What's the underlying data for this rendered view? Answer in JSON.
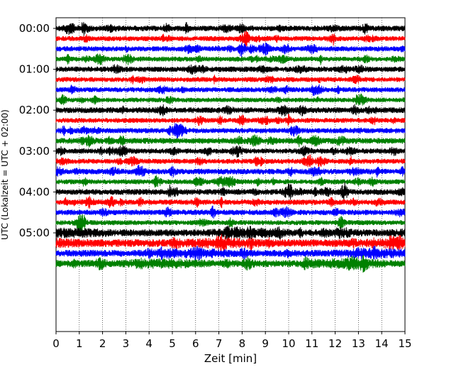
{
  "chart_data": {
    "type": "line",
    "title": "",
    "xlabel": "Zeit  [min]",
    "ylabel": "UTC (Lokalzeit = UTC + 02:00)",
    "xlim": [
      0,
      15
    ],
    "x_ticks": [
      "0",
      "1",
      "2",
      "3",
      "4",
      "5",
      "6",
      "7",
      "8",
      "9",
      "10",
      "11",
      "12",
      "13",
      "14",
      "15"
    ],
    "y_ticks": [
      "00:00",
      "01:00",
      "02:00",
      "03:00",
      "04:00",
      "05:00"
    ],
    "trace_interval_min": 15,
    "trace_count": 24,
    "trace_colors": [
      "#000000",
      "#ff0000",
      "#0000ff",
      "#008000"
    ],
    "grid": "vertical dotted lines at each minute",
    "legend": "none"
  }
}
